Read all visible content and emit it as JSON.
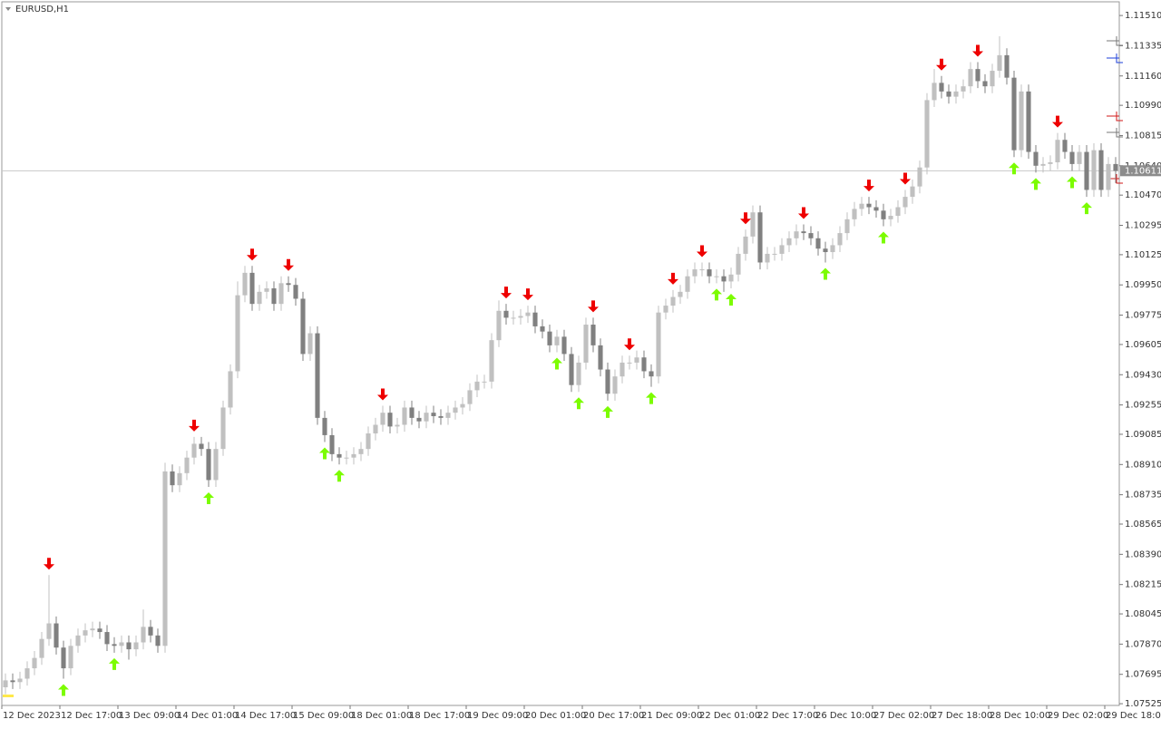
{
  "chart_data": {
    "type": "candlestick",
    "title": "EURUSD,H1",
    "up_color": "#c0c0c0",
    "down_color": "#808080",
    "buy_color": "#7cfc00",
    "sell_color": "#ee0000",
    "xlim": [
      0,
      154
    ],
    "ylim": [
      1.11584,
      1.07515
    ],
    "xticks": [
      {
        "value": 0,
        "label": "12 Dec 2023"
      },
      {
        "value": 8,
        "label": "12 Dec 17:00"
      },
      {
        "value": 16,
        "label": "13 Dec 09:00"
      },
      {
        "value": 24,
        "label": "14 Dec 01:00"
      },
      {
        "value": 32,
        "label": "14 Dec 17:00"
      },
      {
        "value": 40,
        "label": "15 Dec 09:00"
      },
      {
        "value": 48,
        "label": "18 Dec 01:00"
      },
      {
        "value": 56,
        "label": "18 Dec 17:00"
      },
      {
        "value": 64,
        "label": "19 Dec 09:00"
      },
      {
        "value": 72,
        "label": "20 Dec 01:00"
      },
      {
        "value": 80,
        "label": "20 Dec 17:00"
      },
      {
        "value": 88,
        "label": "21 Dec 09:00"
      },
      {
        "value": 96,
        "label": "22 Dec 01:00"
      },
      {
        "value": 104,
        "label": "22 Dec 17:00"
      },
      {
        "value": 112,
        "label": "26 Dec 10:00"
      },
      {
        "value": 120,
        "label": "27 Dec 02:00"
      },
      {
        "value": 128,
        "label": "27 Dec 18:00"
      },
      {
        "value": 136,
        "label": "28 Dec 10:00"
      },
      {
        "value": 144,
        "label": "29 Dec 02:00"
      },
      {
        "value": 152,
        "label": "29 Dec 18:00"
      }
    ],
    "yticks": [
      {
        "value": 1.1151,
        "label": "1.11510"
      },
      1.11335,
      {
        "value": 1.1116,
        "label": "1.11160"
      },
      {
        "value": 1.1099,
        "label": "1.10990"
      },
      1.10815,
      {
        "value": 1.1064,
        "label": "1.10640"
      },
      {
        "value": 1.1047,
        "label": "1.10470"
      },
      1.10295,
      1.10125,
      {
        "value": 1.0995,
        "label": "1.09950"
      },
      1.09775,
      1.09605,
      {
        "value": 1.0943,
        "label": "1.09430"
      },
      1.09255,
      1.09085,
      {
        "value": 1.0891,
        "label": "1.08910"
      },
      1.08735,
      1.08565,
      {
        "value": 1.0839,
        "label": "1.08390"
      },
      1.08215,
      1.08045,
      {
        "value": 1.0787,
        "label": "1.07870"
      },
      1.07695,
      1.07525
    ],
    "bid": 1.10611,
    "open": [
      1.0762,
      1.0766,
      1.0765,
      1.0767,
      1.0773,
      1.0779,
      1.079,
      1.0799,
      1.0785,
      1.0773,
      1.0786,
      1.0792,
      1.0795,
      1.0796,
      1.0794,
      1.0787,
      1.0786,
      1.0788,
      1.0784,
      1.0788,
      1.0797,
      1.0792,
      1.0786,
      1.0887,
      1.0879,
      1.0886,
      1.0895,
      1.0903,
      1.09,
      1.0882,
      1.09,
      1.0924,
      1.0945,
      1.0989,
      1.1002,
      1.0984,
      1.0991,
      1.0993,
      1.0984,
      1.0996,
      1.0995,
      1.0987,
      1.0955,
      1.0967,
      1.0918,
      1.0908,
      1.0897,
      1.0895,
      1.0895,
      1.0897,
      1.09,
      1.0909,
      1.0914,
      1.0921,
      1.0913,
      1.0914,
      1.0924,
      1.0918,
      1.0916,
      1.0921,
      1.0919,
      1.0918,
      1.0921,
      1.0924,
      1.0926,
      1.0934,
      1.0939,
      1.0939,
      1.0963,
      1.098,
      1.0976,
      1.0976,
      1.0977,
      1.0979,
      1.0971,
      1.0968,
      1.096,
      1.0965,
      1.0955,
      1.0937,
      1.095,
      1.0972,
      1.096,
      1.0946,
      1.0932,
      1.0942,
      1.095,
      1.095,
      1.0953,
      1.0945,
      1.0942,
      1.0979,
      1.0983,
      1.0988,
      1.0991,
      1.1,
      1.1004,
      1.1004,
      1.1,
      1.1,
      1.0997,
      1.1001,
      1.1013,
      1.1023,
      1.1037,
      1.1008,
      1.1013,
      1.1013,
      1.1018,
      1.1022,
      1.1026,
      1.1025,
      1.1022,
      1.1016,
      1.1014,
      1.1018,
      1.1025,
      1.1033,
      1.1039,
      1.1042,
      1.104,
      1.1038,
      1.1033,
      1.1035,
      1.104,
      1.1046,
      1.1052,
      1.1063,
      1.1102,
      1.1112,
      1.1107,
      1.1104,
      1.1107,
      1.111,
      1.112,
      1.1113,
      1.111,
      1.1119,
      1.1128,
      1.1115,
      1.1073,
      1.1107,
      1.1072,
      1.1064,
      1.1065,
      1.1066,
      1.1079,
      1.1072,
      1.1065,
      1.1072,
      1.105,
      1.1073,
      1.105,
      1.1065
    ],
    "high": [
      1.077,
      1.077,
      1.0771,
      1.0777,
      1.0783,
      1.0794,
      1.0827,
      1.0803,
      1.0789,
      1.079,
      1.0796,
      1.0799,
      1.08,
      1.08,
      1.0798,
      1.0791,
      1.0792,
      1.0792,
      1.0792,
      1.0807,
      1.0801,
      1.0796,
      1.0892,
      1.0891,
      1.089,
      1.0899,
      1.0907,
      1.0907,
      1.0904,
      1.0904,
      1.0928,
      1.0949,
      1.0997,
      1.1006,
      1.1006,
      1.0995,
      1.0997,
      1.0997,
      1.1,
      1.1,
      1.0999,
      1.0991,
      1.0971,
      1.0971,
      1.0922,
      1.0912,
      1.0901,
      1.0899,
      1.0901,
      1.0904,
      1.0913,
      1.0918,
      1.0925,
      1.0925,
      1.0918,
      1.0928,
      1.0928,
      1.0922,
      1.0925,
      1.0925,
      1.0923,
      1.0925,
      1.0928,
      1.093,
      1.0938,
      1.0943,
      1.0943,
      1.0967,
      1.0986,
      1.0984,
      1.098,
      1.0981,
      1.0983,
      1.0983,
      1.0975,
      1.0972,
      1.0969,
      1.0969,
      1.0959,
      1.0954,
      1.0976,
      1.0976,
      1.0964,
      1.095,
      1.0946,
      1.0954,
      1.0954,
      1.0957,
      1.0957,
      1.0949,
      1.0983,
      1.0987,
      1.0992,
      1.0995,
      1.1004,
      1.1008,
      1.1008,
      1.1008,
      1.1004,
      1.1004,
      1.1005,
      1.1017,
      1.1027,
      1.1041,
      1.1041,
      1.1017,
      1.1017,
      1.1022,
      1.1026,
      1.103,
      1.103,
      1.1029,
      1.1026,
      1.102,
      1.1022,
      1.1029,
      1.1037,
      1.1043,
      1.1046,
      1.1046,
      1.1044,
      1.1042,
      1.1039,
      1.1044,
      1.105,
      1.1056,
      1.1067,
      1.1106,
      1.112,
      1.1116,
      1.1111,
      1.1111,
      1.1114,
      1.1124,
      1.1124,
      1.1117,
      1.1123,
      1.1139,
      1.1132,
      1.1119,
      1.1111,
      1.1111,
      1.1076,
      1.1069,
      1.107,
      1.1083,
      1.1083,
      1.1076,
      1.1076,
      1.1076,
      1.1077,
      1.1077,
      1.1069,
      1.1069
    ],
    "low": [
      1.0758,
      1.0761,
      1.0761,
      1.0763,
      1.0769,
      1.0775,
      1.0786,
      1.0781,
      1.0767,
      1.0769,
      1.0782,
      1.0788,
      1.0791,
      1.079,
      1.0783,
      1.0782,
      1.0782,
      1.0778,
      1.078,
      1.0784,
      1.0788,
      1.0782,
      1.0782,
      1.0875,
      1.0875,
      1.0882,
      1.0891,
      1.0896,
      1.0878,
      1.0878,
      1.0896,
      1.092,
      1.0941,
      1.0985,
      1.098,
      1.098,
      1.0987,
      1.098,
      1.098,
      1.0991,
      1.0983,
      1.0951,
      1.0951,
      1.0914,
      1.0904,
      1.0893,
      1.0891,
      1.0891,
      1.0891,
      1.0893,
      1.0896,
      1.0905,
      1.091,
      1.0909,
      1.0909,
      1.091,
      1.0914,
      1.0912,
      1.0912,
      1.0915,
      1.0914,
      1.0914,
      1.0917,
      1.092,
      1.0922,
      1.093,
      1.0935,
      1.0935,
      1.0959,
      1.0972,
      1.0972,
      1.0972,
      1.0973,
      1.0967,
      1.0964,
      1.0956,
      1.0956,
      1.0951,
      1.0933,
      1.0933,
      1.0946,
      1.0956,
      1.0942,
      1.0928,
      1.0928,
      1.0938,
      1.0946,
      1.0946,
      1.0941,
      1.0936,
      1.0938,
      1.0975,
      1.0979,
      1.0984,
      1.0987,
      1.0996,
      1.1,
      1.0996,
      1.0996,
      1.0991,
      1.0993,
      1.0997,
      1.1009,
      1.1019,
      1.1004,
      1.1004,
      1.1009,
      1.1009,
      1.1014,
      1.1018,
      1.1021,
      1.1018,
      1.1012,
      1.1008,
      1.101,
      1.1014,
      1.1021,
      1.1029,
      1.1035,
      1.1036,
      1.1034,
      1.1029,
      1.1029,
      1.1031,
      1.1036,
      1.1042,
      1.1048,
      1.1059,
      1.1098,
      1.1103,
      1.11,
      1.11,
      1.1103,
      1.1106,
      1.1109,
      1.1106,
      1.1106,
      1.1115,
      1.1111,
      1.1069,
      1.1069,
      1.1068,
      1.106,
      1.106,
      1.1061,
      1.1062,
      1.1068,
      1.1061,
      1.1061,
      1.1046,
      1.1046,
      1.1046,
      1.1046,
      1.1054
    ],
    "close": [
      1.0766,
      1.0765,
      1.0767,
      1.0773,
      1.0779,
      1.079,
      1.0799,
      1.0785,
      1.0773,
      1.0786,
      1.0792,
      1.0795,
      1.0796,
      1.0794,
      1.0787,
      1.0786,
      1.0788,
      1.0784,
      1.0788,
      1.0797,
      1.0792,
      1.0786,
      1.0887,
      1.0879,
      1.0886,
      1.0895,
      1.0903,
      1.09,
      1.0882,
      1.09,
      1.0924,
      1.0945,
      1.0989,
      1.1002,
      1.0984,
      1.0991,
      1.0993,
      1.0984,
      1.0996,
      1.0995,
      1.0987,
      1.0955,
      1.0967,
      1.0918,
      1.0908,
      1.0897,
      1.0895,
      1.0895,
      1.0897,
      1.09,
      1.0909,
      1.0914,
      1.0921,
      1.0913,
      1.0914,
      1.0924,
      1.0918,
      1.0916,
      1.0921,
      1.0919,
      1.0918,
      1.0921,
      1.0924,
      1.0926,
      1.0934,
      1.0939,
      1.0939,
      1.0963,
      1.098,
      1.0976,
      1.0976,
      1.0977,
      1.0979,
      1.0971,
      1.0968,
      1.096,
      1.0965,
      1.0955,
      1.0937,
      1.095,
      1.0972,
      1.096,
      1.0946,
      1.0932,
      1.0942,
      1.095,
      1.095,
      1.0953,
      1.0945,
      1.0942,
      1.0979,
      1.0983,
      1.0988,
      1.0991,
      1.1,
      1.1004,
      1.1004,
      1.1,
      1.1,
      1.0997,
      1.1001,
      1.1013,
      1.1023,
      1.1037,
      1.1008,
      1.1013,
      1.1013,
      1.1018,
      1.1022,
      1.1026,
      1.1025,
      1.1022,
      1.1016,
      1.1014,
      1.1018,
      1.1025,
      1.1033,
      1.1039,
      1.1042,
      1.104,
      1.1038,
      1.1033,
      1.1035,
      1.104,
      1.1046,
      1.1052,
      1.1063,
      1.1102,
      1.1112,
      1.1107,
      1.1104,
      1.1107,
      1.111,
      1.112,
      1.1113,
      1.111,
      1.1119,
      1.1128,
      1.1115,
      1.1073,
      1.1107,
      1.1072,
      1.1064,
      1.1065,
      1.1066,
      1.1079,
      1.1072,
      1.1065,
      1.1072,
      1.105,
      1.1073,
      1.105,
      1.1065,
      1.1061
    ],
    "sell_signals": [
      6,
      26,
      34,
      39,
      52,
      69,
      72,
      81,
      86,
      92,
      96,
      102,
      110,
      119,
      124,
      129,
      134,
      145
    ],
    "buy_signals": [
      8,
      15,
      28,
      44,
      46,
      76,
      79,
      83,
      89,
      98,
      100,
      113,
      121,
      139,
      142,
      147,
      149
    ]
  }
}
